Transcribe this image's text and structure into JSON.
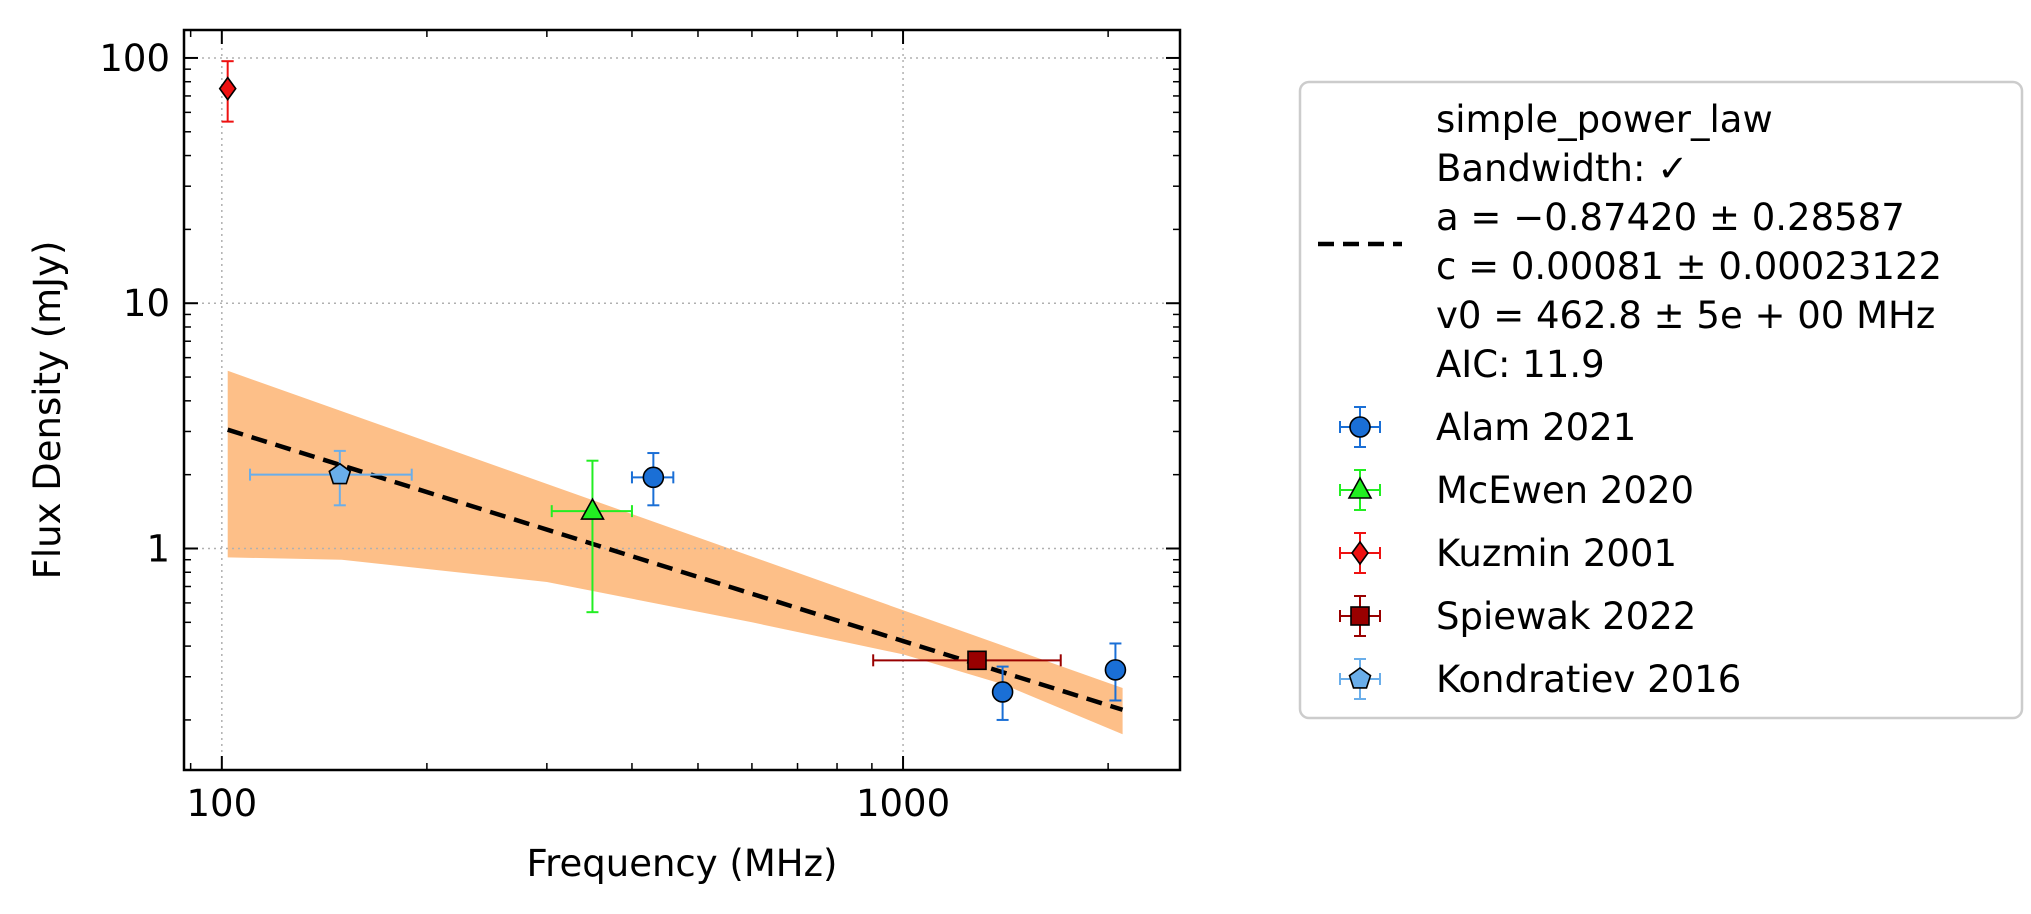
{
  "chart_data": {
    "type": "scatter",
    "xlabel": "Frequency (MHz)",
    "ylabel": "Flux Density (mJy)",
    "xscale": "log",
    "yscale": "log",
    "xlim": [
      88,
      2550
    ],
    "ylim": [
      0.125,
      130
    ],
    "grid": true,
    "legend_position": "right, outside plot",
    "xticks": [
      {
        "value": 100,
        "label": "100"
      },
      {
        "value": 1000,
        "label": "1000"
      }
    ],
    "yticks": [
      {
        "value": 1,
        "label": "1"
      },
      {
        "value": 10,
        "label": "10"
      },
      {
        "value": 100,
        "label": "100"
      }
    ],
    "fit": {
      "name": "simple_power_law",
      "label_lines": [
        "simple_power_law",
        "Bandwidth: ✓",
        "a = −0.87420 ± 0.28587",
        "c = 0.00081 ± 0.00023122",
        "v0 = 462.8 ± 5e + 00 MHz",
        "AIC: 11.9"
      ],
      "line_color": "#000000",
      "band_color": "#fdbf88",
      "line_points": [
        [
          102,
          3.05
        ],
        [
          2100,
          0.22
        ]
      ],
      "band_upper": [
        [
          102,
          5.3
        ],
        [
          2100,
          0.27
        ]
      ],
      "band_lower": [
        [
          102,
          0.92
        ],
        [
          150,
          0.9
        ],
        [
          300,
          0.73
        ],
        [
          600,
          0.5
        ],
        [
          1000,
          0.37
        ],
        [
          1400,
          0.28
        ],
        [
          2100,
          0.175
        ]
      ]
    },
    "series": [
      {
        "name": "Alam 2021",
        "marker": "circle",
        "color": "#1a6fd6",
        "points": [
          {
            "x": 430,
            "y": 1.95,
            "xerr": [
              30,
              30
            ],
            "yerr": [
              0.45,
              0.5
            ]
          },
          {
            "x": 1400,
            "y": 0.26,
            "xerr": [
              0,
              0
            ],
            "yerr": [
              0.06,
              0.07
            ]
          },
          {
            "x": 2050,
            "y": 0.32,
            "xerr": [
              0,
              0
            ],
            "yerr": [
              0.08,
              0.09
            ]
          }
        ]
      },
      {
        "name": "McEwen 2020",
        "marker": "triangle",
        "color": "#22ee22",
        "points": [
          {
            "x": 350,
            "y": 1.42,
            "xerr": [
              45,
              50
            ],
            "yerr": [
              0.87,
              0.86
            ]
          }
        ]
      },
      {
        "name": "Kuzmin 2001",
        "marker": "diamond",
        "color": "#ee1111",
        "points": [
          {
            "x": 102,
            "y": 75,
            "xerr": [
              0,
              0
            ],
            "yerr": [
              20,
              22
            ]
          }
        ]
      },
      {
        "name": "Spiewak 2022",
        "marker": "square",
        "color": "#990000",
        "points": [
          {
            "x": 1284,
            "y": 0.35,
            "xerr": [
              380,
              420
            ],
            "yerr": [
              0,
              0
            ]
          }
        ]
      },
      {
        "name": "Kondratiev 2016",
        "marker": "pentagon",
        "color": "#6aaeea",
        "points": [
          {
            "x": 149,
            "y": 2.0,
            "xerr": [
              39,
              41
            ],
            "yerr": [
              0.5,
              0.5
            ]
          }
        ]
      }
    ]
  }
}
